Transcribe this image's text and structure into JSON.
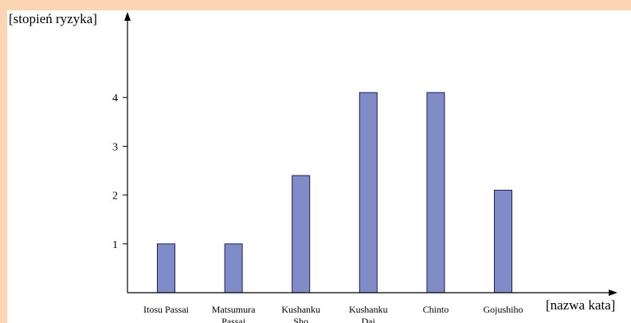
{
  "chart_data": {
    "type": "bar",
    "xlabel": "[nazwa kata]",
    "ylabel": "[stopień ryzyka]",
    "categories": [
      [
        "Itosu Passai"
      ],
      [
        "Matsumura",
        "Passai"
      ],
      [
        "Kushanku",
        "Sho"
      ],
      [
        "Kushanku",
        "Dai"
      ],
      [
        "Chinto"
      ],
      [
        "Gojushiho"
      ]
    ],
    "values": [
      1,
      1,
      2.4,
      4.1,
      4.1,
      2.1
    ],
    "yticks": [
      1,
      2,
      3,
      4
    ],
    "ylim": [
      0,
      5
    ],
    "grid": false,
    "legend": "none",
    "colors": {
      "bar_fill": "#7f8cc7",
      "bar_stroke": "#1a1f5a",
      "axis": "#000000",
      "border": "#fcd5b4"
    }
  }
}
